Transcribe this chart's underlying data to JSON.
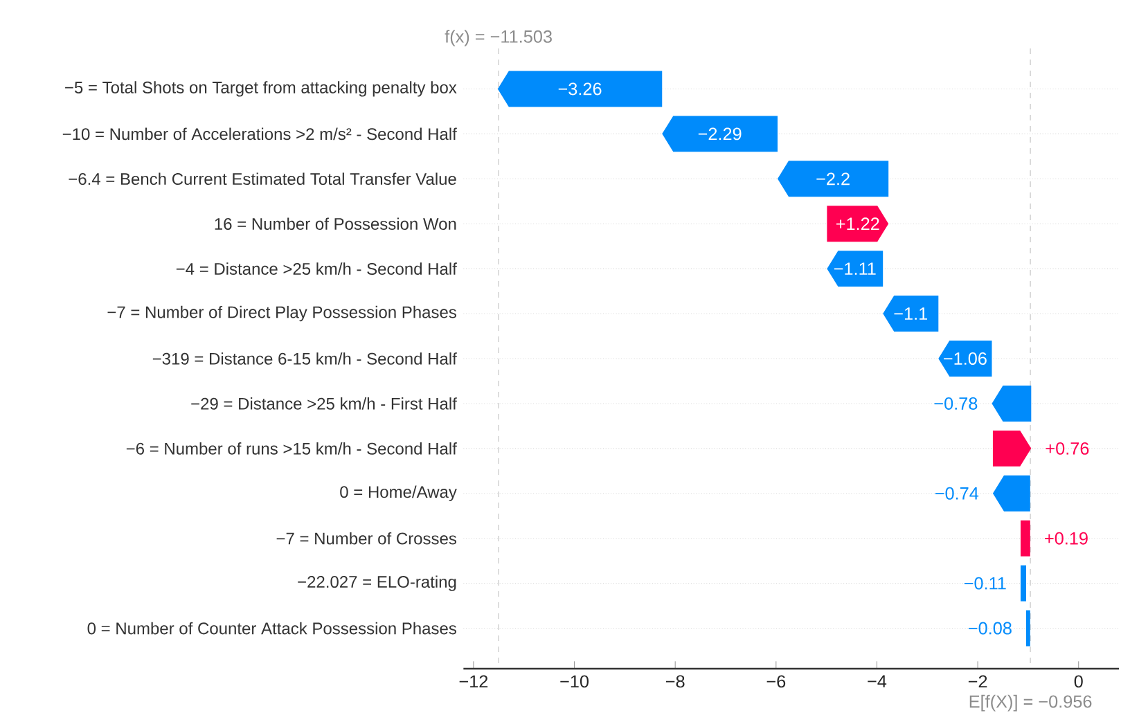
{
  "chart_data": {
    "type": "bar",
    "orientation": "horizontal",
    "categories": [
      "−5 = Total Shots on Target from attacking penalty box",
      "−10 = Number of Accelerations >2 m/s² - Second Half",
      "−6.4 = Bench Current Estimated Total Transfer Value",
      "16 = Number of Possession Won",
      "−4 = Distance >25 km/h - Second Half",
      "−7 = Number of Direct Play Possession Phases",
      "−319 = Distance 6-15 km/h - Second Half",
      "−29 = Distance >25 km/h - First Half",
      "−6 = Number of runs >15 km/h - Second Half",
      "0 = Home/Away",
      "−7 = Number of Crosses",
      "−22.027 = ELO-rating",
      "0 = Number of Counter Attack Possession Phases"
    ],
    "values": [
      -3.26,
      -2.29,
      -2.2,
      1.22,
      -1.11,
      -1.1,
      -1.06,
      -0.78,
      0.76,
      -0.74,
      0.19,
      -0.11,
      -0.08
    ],
    "base": [
      -8.26,
      -5.97,
      -3.77,
      -4.99,
      -3.88,
      -2.78,
      -1.72,
      -0.94,
      -1.7,
      -0.96,
      -1.15,
      -1.04,
      -0.96
    ],
    "colors": [
      "#008bfb",
      "#008bfb",
      "#008bfb",
      "#ff0051",
      "#008bfb",
      "#008bfb",
      "#008bfb",
      "#008bfb",
      "#ff0051",
      "#008bfb",
      "#ff0051",
      "#008bfb",
      "#008bfb"
    ],
    "value_labels": [
      "−3.26",
      "−2.29",
      "−2.2",
      "+1.22",
      "−1.11",
      "−1.1",
      "−1.06",
      "−0.78",
      "+0.76",
      "−0.74",
      "+0.19",
      "−0.11",
      "−0.08"
    ],
    "xlim": [
      -12.2,
      0.8
    ],
    "xticks": [
      {
        "value": -12,
        "label": "−12"
      },
      {
        "value": -10,
        "label": "−10"
      },
      {
        "value": -8,
        "label": "−8"
      },
      {
        "value": -6,
        "label": "−6"
      },
      {
        "value": -4,
        "label": "−4"
      },
      {
        "value": -2,
        "label": "−2"
      },
      0
    ],
    "grid": "y",
    "ref_lines": [
      {
        "axis": "x",
        "value": -11.503,
        "label": "f(x) = −11.503",
        "color": "#cccccc",
        "line_style": "dashed"
      },
      {
        "axis": "x",
        "value": -0.956,
        "label": "E[f(X)] = −0.956",
        "color": "#cccccc",
        "line_style": "dashed"
      }
    ]
  }
}
